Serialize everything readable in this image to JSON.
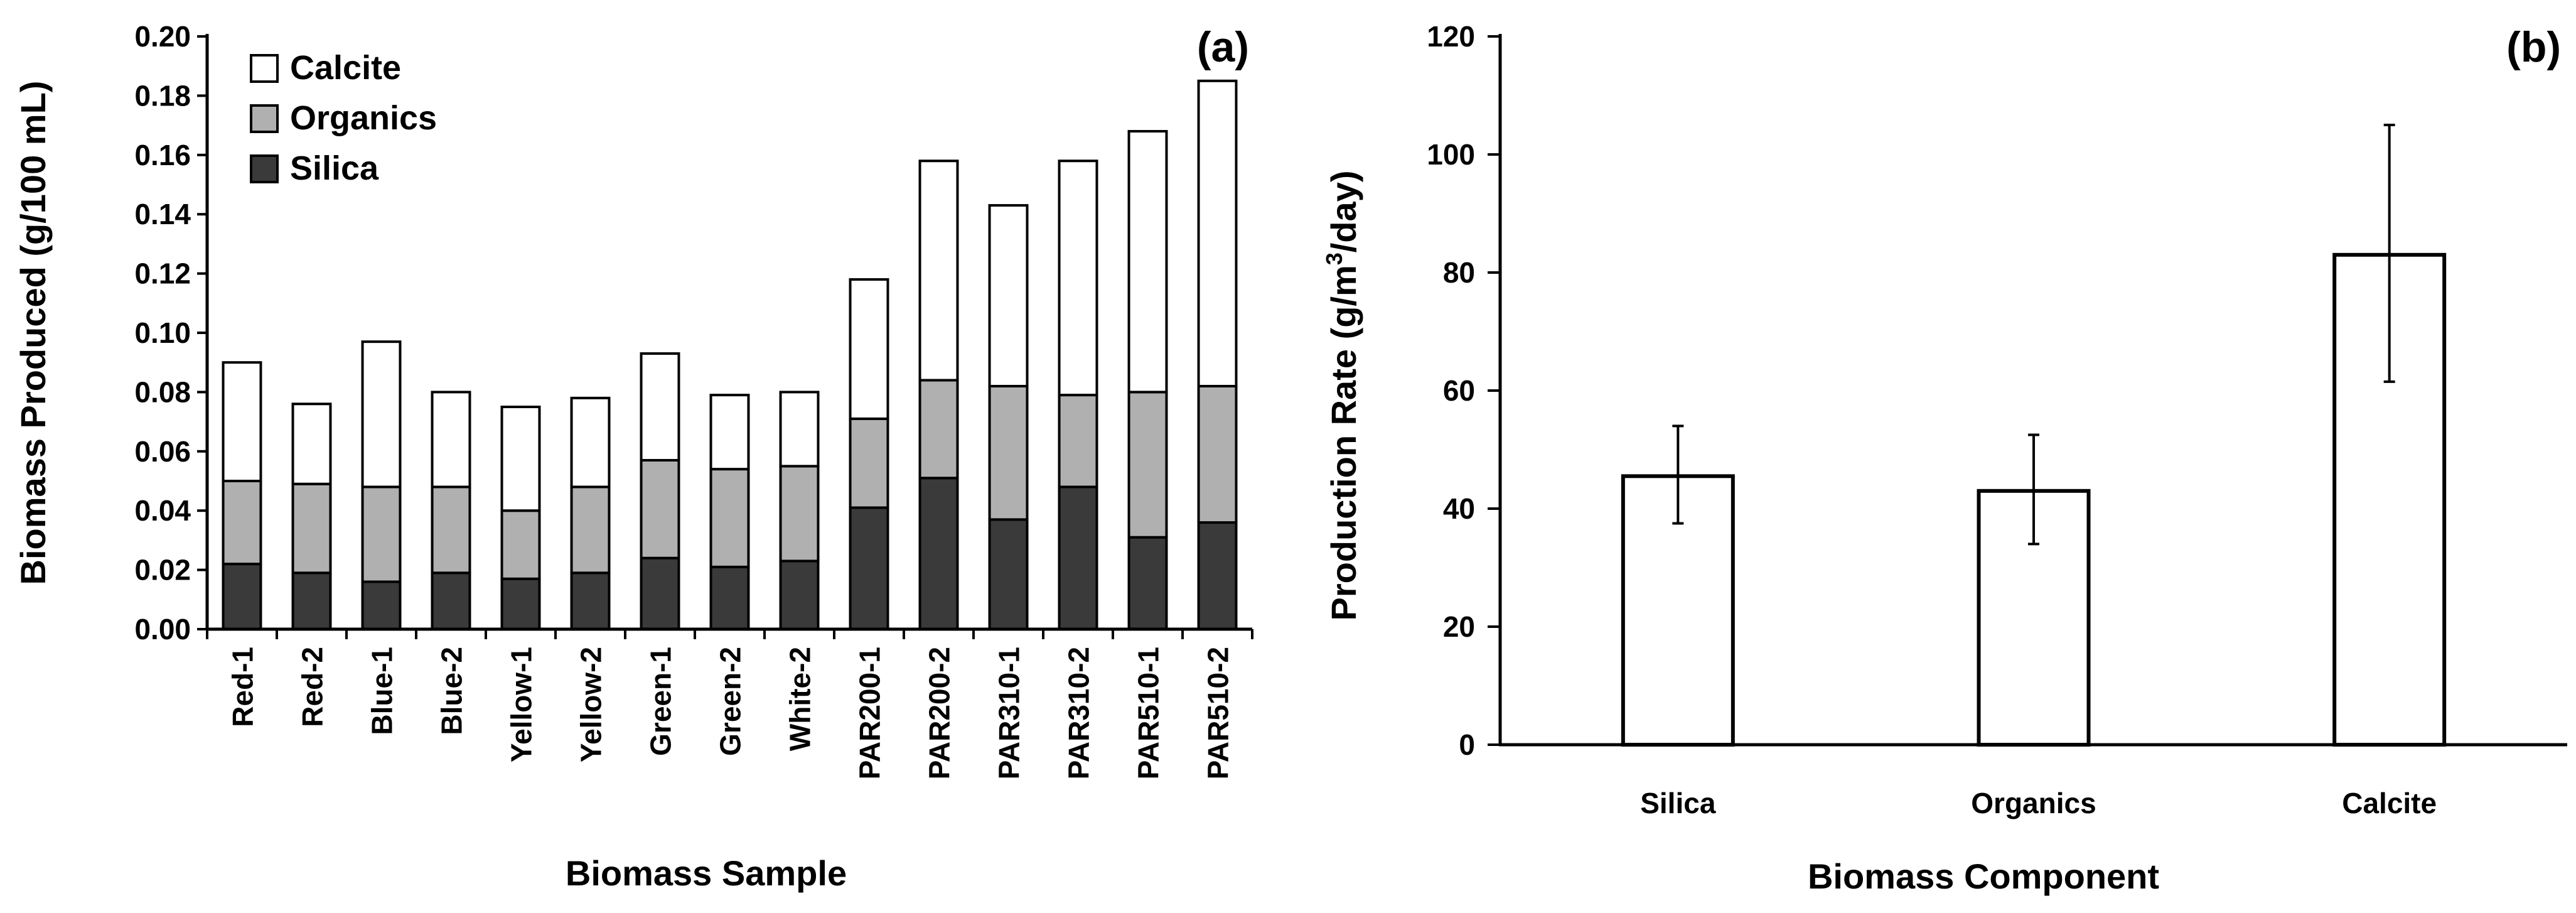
{
  "chart_data": [
    {
      "type": "bar",
      "stacked": true,
      "panel_label": "(a)",
      "title": "",
      "xlabel": "Biomass Sample",
      "ylabel": "Biomass Produced (g/100 mL)",
      "ylim": [
        0,
        0.2
      ],
      "yticks": [
        "0.00",
        "0.02",
        "0.04",
        "0.06",
        "0.08",
        "0.10",
        "0.12",
        "0.14",
        "0.16",
        "0.18",
        "0.20"
      ],
      "legend_position": "top-left",
      "categories": [
        "Red-1",
        "Red-2",
        "Blue-1",
        "Blue-2",
        "Yellow-1",
        "Yellow-2",
        "Green-1",
        "Green-2",
        "White-2",
        "PAR200-1",
        "PAR200-2",
        "PAR310-1",
        "PAR310-2",
        "PAR510-1",
        "PAR510-2"
      ],
      "series": [
        {
          "name": "Silica",
          "color": "#3a3a3a",
          "values": [
            0.022,
            0.019,
            0.016,
            0.019,
            0.017,
            0.019,
            0.024,
            0.021,
            0.023,
            0.041,
            0.051,
            0.037,
            0.048,
            0.031,
            0.036
          ]
        },
        {
          "name": "Organics",
          "color": "#b0b0b0",
          "values": [
            0.028,
            0.03,
            0.032,
            0.029,
            0.023,
            0.029,
            0.033,
            0.033,
            0.032,
            0.03,
            0.033,
            0.045,
            0.031,
            0.049,
            0.046
          ]
        },
        {
          "name": "Calcite",
          "color": "#ffffff",
          "values": [
            0.04,
            0.027,
            0.049,
            0.032,
            0.035,
            0.03,
            0.036,
            0.025,
            0.025,
            0.047,
            0.074,
            0.061,
            0.079,
            0.088,
            0.103
          ]
        }
      ],
      "legend_order": [
        "Calcite",
        "Organics",
        "Silica"
      ]
    },
    {
      "type": "bar",
      "panel_label": "(b)",
      "title": "",
      "xlabel": "Biomass Component",
      "ylabel_prefix": "Production Rate (g/m",
      "ylabel_sup": "3",
      "ylabel_suffix": "/day)",
      "ylim": [
        0,
        120
      ],
      "yticks": [
        "0",
        "20",
        "40",
        "60",
        "80",
        "100",
        "120"
      ],
      "categories": [
        "Silica",
        "Organics",
        "Calcite"
      ],
      "values": [
        45.5,
        43,
        83
      ],
      "error_low": [
        37.5,
        34,
        61.5
      ],
      "error_high": [
        54,
        52.5,
        105
      ],
      "color": "#ffffff"
    }
  ]
}
